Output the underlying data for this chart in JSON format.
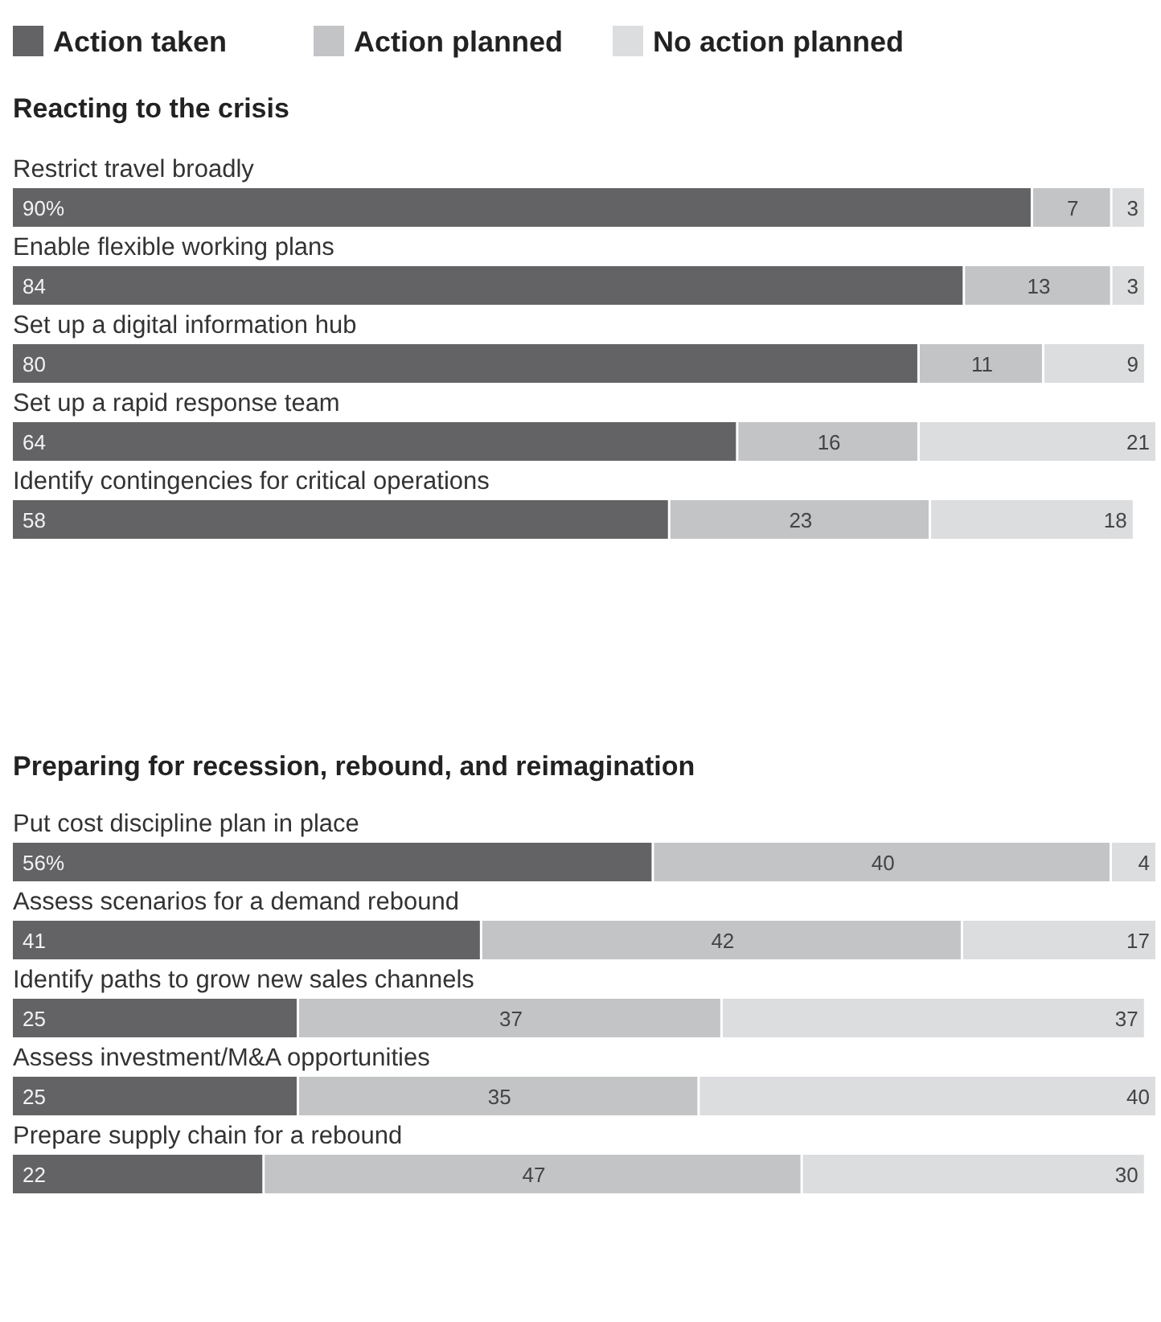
{
  "chart_data": [
    {
      "type": "bar",
      "orientation": "horizontal",
      "stacked": true,
      "legend": "top left",
      "title": "Reacting to the crisis",
      "categories": [
        "Restrict travel broadly",
        "Enable flexible working plans",
        "Set up a digital information hub",
        "Set up a rapid response team",
        "Identify contingencies for critical operations"
      ],
      "series": [
        {
          "name": "Action taken",
          "color": "#636365",
          "values": [
            90,
            84,
            80,
            64,
            58
          ],
          "value_labels": [
            "90%",
            "84",
            "80",
            "64",
            "58"
          ]
        },
        {
          "name": "Action planned",
          "color": "#c3c4c6",
          "values": [
            7,
            13,
            11,
            16,
            23
          ],
          "value_labels": [
            "7",
            "13",
            "11",
            "16",
            "23"
          ]
        },
        {
          "name": "No action planned",
          "color": "#dcdddf",
          "values": [
            3,
            3,
            9,
            21,
            18
          ],
          "value_labels": [
            "3",
            "3",
            "9",
            "21",
            "18"
          ]
        }
      ]
    },
    {
      "type": "bar",
      "orientation": "horizontal",
      "stacked": true,
      "title": "Preparing for recession, rebound, and reimagination",
      "categories": [
        "Put cost discipline plan in place",
        "Assess scenarios for a demand rebound",
        "Identify paths to grow new sales channels",
        "Assess investment/M&A opportunities",
        "Prepare supply chain for a rebound"
      ],
      "series": [
        {
          "color": "#636365",
          "values": [
            56,
            41,
            25,
            25,
            22
          ],
          "value_labels": [
            "56%",
            "41",
            "25",
            "25",
            "22"
          ]
        },
        {
          "color": "#c3c4c6",
          "values": [
            40,
            42,
            37,
            35,
            47
          ],
          "value_labels": [
            "40",
            "42",
            "37",
            "35",
            "47"
          ]
        },
        {
          "color": "#dcdddf",
          "values": [
            4,
            17,
            37,
            40,
            30
          ],
          "value_labels": [
            "4",
            "17",
            "37",
            "40",
            "30"
          ]
        }
      ]
    }
  ]
}
